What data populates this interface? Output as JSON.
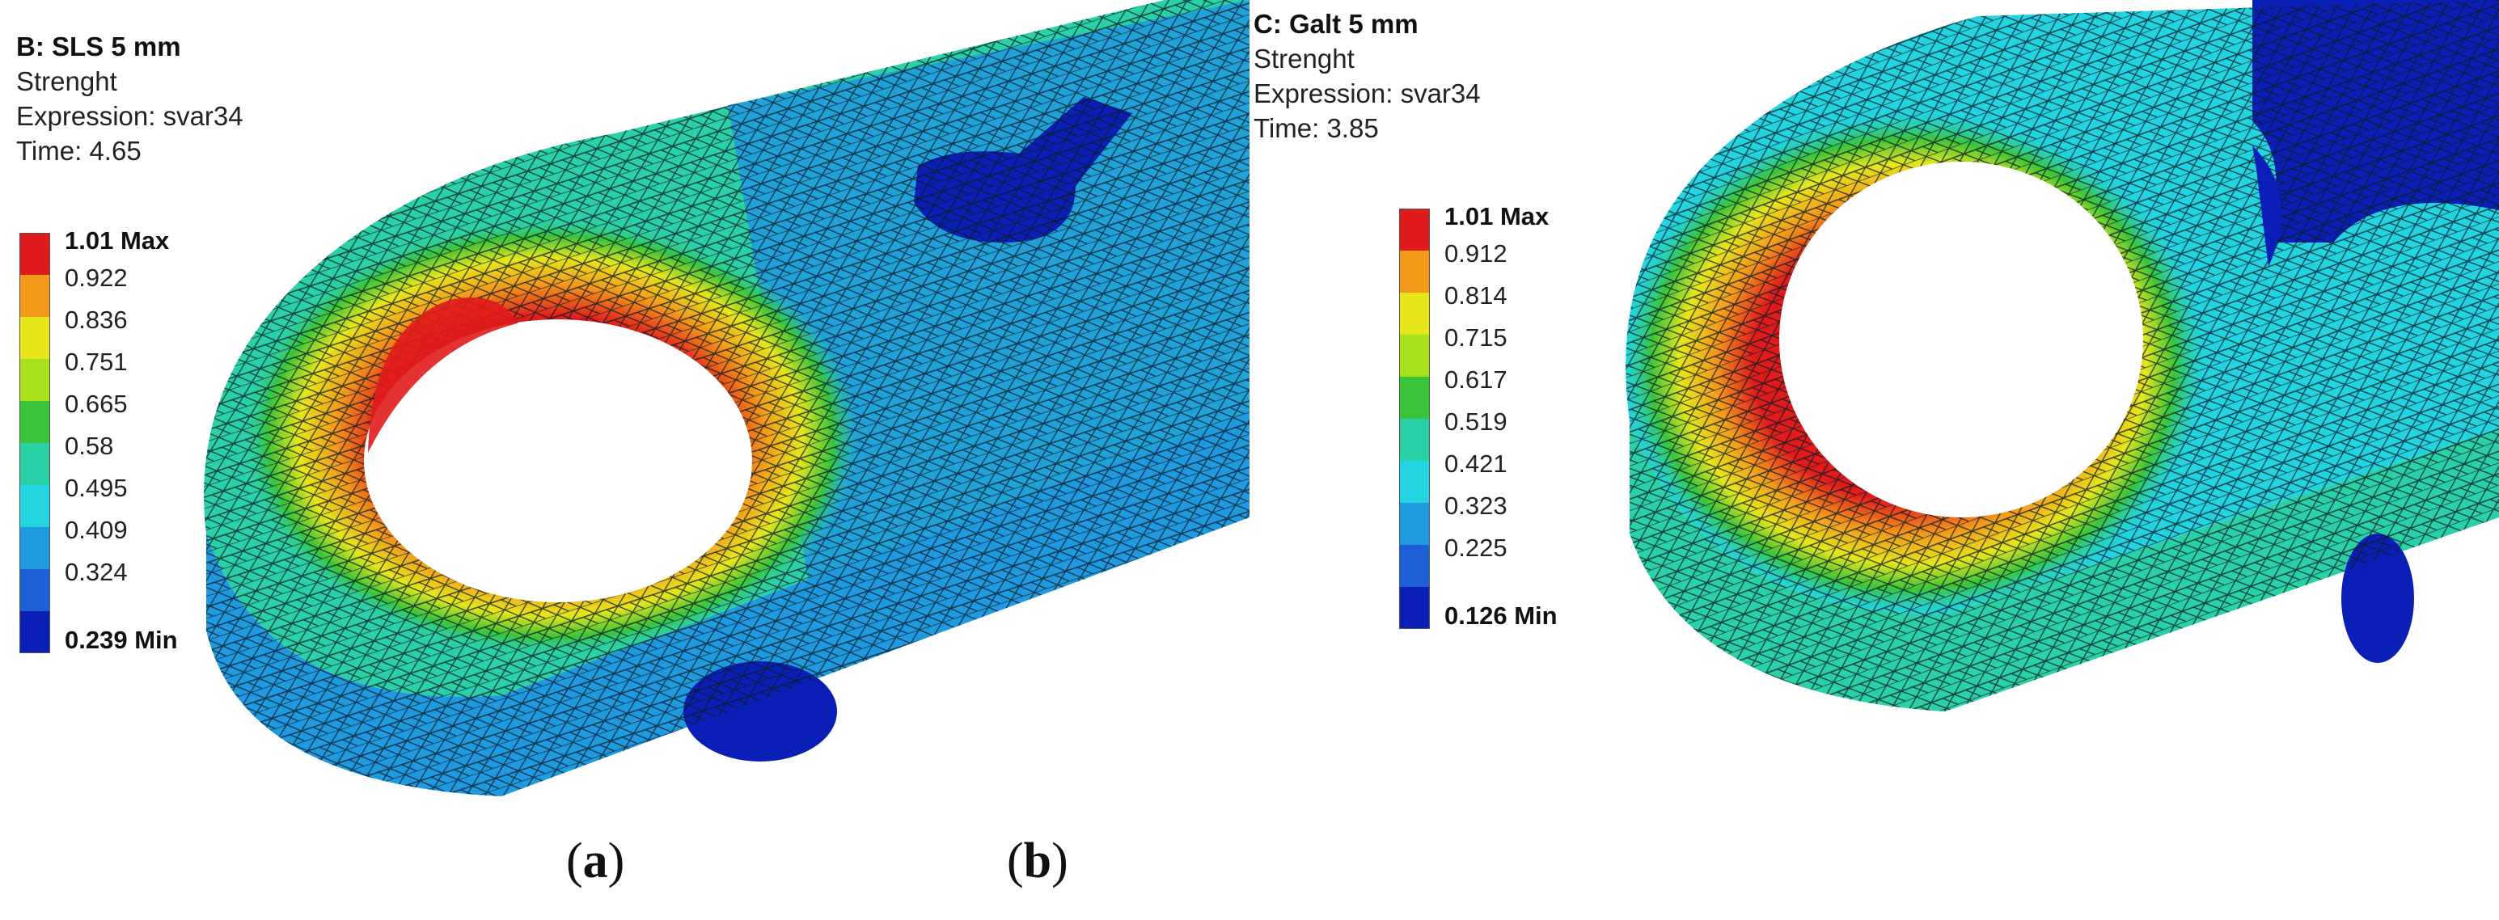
{
  "panels": [
    {
      "id": "a",
      "title": "B: SLS 5 mm",
      "result": "Strenght",
      "expression": "Expression: svar34",
      "time": "Time: 4.65",
      "legend": [
        "1.01 Max",
        "0.922",
        "0.836",
        "0.751",
        "0.665",
        "0.58",
        "0.495",
        "0.409",
        "0.324",
        "0.239 Min"
      ],
      "caption": {
        "open": "(",
        "letter": "a",
        "close": ")"
      }
    },
    {
      "id": "b",
      "title": "C: Galt 5 mm",
      "result": "Strenght",
      "expression": "Expression: svar34",
      "time": "Time: 3.85",
      "legend": [
        "1.01 Max",
        "0.912",
        "0.814",
        "0.715",
        "0.617",
        "0.519",
        "0.421",
        "0.323",
        "0.225",
        "0.126 Min"
      ],
      "caption": {
        "open": "(",
        "letter": "b",
        "close": ")"
      }
    }
  ],
  "colors": {
    "scale": [
      "#e11b1b",
      "#f39a1a",
      "#e6e61a",
      "#a8e01c",
      "#3ac43a",
      "#2bd1a6",
      "#22d3e0",
      "#1f9ae0",
      "#1c5fd6",
      "#0a1fb5"
    ],
    "mesh_line": "#0b1a26",
    "background": "#ffffff"
  }
}
